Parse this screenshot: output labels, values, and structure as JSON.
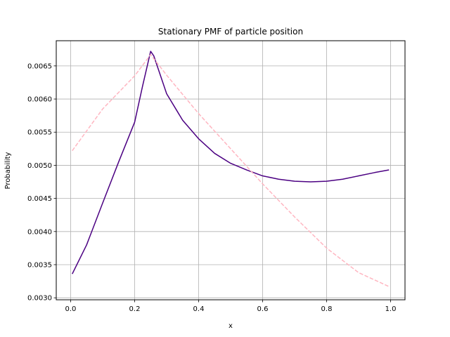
{
  "chart_data": {
    "type": "line",
    "title": "Stationary PMF of particle position",
    "xlabel": "x",
    "ylabel": "Probability",
    "xlim": [
      -0.045,
      1.045
    ],
    "ylim": [
      0.00297,
      0.00688
    ],
    "xticks": [
      0.0,
      0.2,
      0.4,
      0.6,
      0.8,
      1.0
    ],
    "xtick_labels": [
      "0.0",
      "0.2",
      "0.4",
      "0.6",
      "0.8",
      "1.0"
    ],
    "yticks": [
      0.003,
      0.0035,
      0.004,
      0.0045,
      0.005,
      0.0055,
      0.006,
      0.0065
    ],
    "ytick_labels": [
      "0.0030",
      "0.0035",
      "0.0040",
      "0.0045",
      "0.0050",
      "0.0055",
      "0.0060",
      "0.0065"
    ],
    "grid": true,
    "legend": "none",
    "series": [
      {
        "color": "#4b0082",
        "style": "solid",
        "x": [
          0.005,
          0.05,
          0.1,
          0.15,
          0.2,
          0.225,
          0.25,
          0.26,
          0.3,
          0.35,
          0.4,
          0.45,
          0.5,
          0.55,
          0.6,
          0.65,
          0.7,
          0.75,
          0.8,
          0.85,
          0.9,
          0.95,
          0.995
        ],
        "y": [
          0.00336,
          0.0038,
          0.00443,
          0.00505,
          0.00565,
          0.0062,
          0.00672,
          0.00665,
          0.00608,
          0.00568,
          0.0054,
          0.00518,
          0.00503,
          0.00493,
          0.00484,
          0.00479,
          0.00476,
          0.00475,
          0.00476,
          0.00479,
          0.00484,
          0.00489,
          0.00493
        ]
      },
      {
        "color": "#ffb6c1",
        "style": "dashed",
        "x": [
          0.005,
          0.1,
          0.2,
          0.25,
          0.3,
          0.4,
          0.5,
          0.6,
          0.7,
          0.8,
          0.9,
          0.995
        ],
        "y": [
          0.00522,
          0.00585,
          0.00635,
          0.00667,
          0.00636,
          0.00578,
          0.00525,
          0.00472,
          0.00422,
          0.00375,
          0.00338,
          0.00317
        ]
      }
    ]
  }
}
